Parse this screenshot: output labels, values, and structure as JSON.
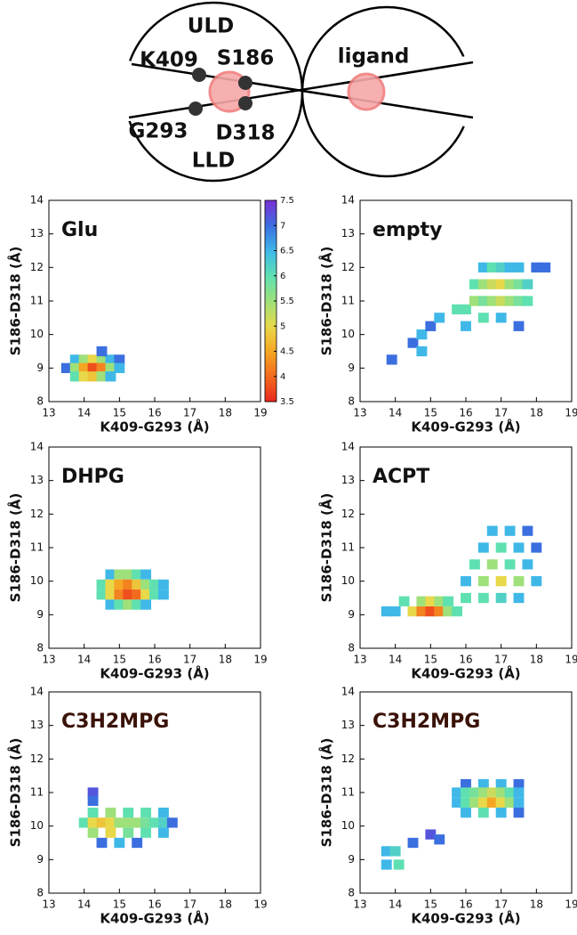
{
  "diagram": {
    "uld": "ULD",
    "lld": "LLD",
    "k409": "K409",
    "s186": "S186",
    "g293": "G293",
    "d318": "D318",
    "ligand": "ligand"
  },
  "chart_data": [
    {
      "type": "heatmap",
      "title": "Glu",
      "xlabel": "K409-G293 (Å)",
      "ylabel": "S186-D318 (Å)",
      "xlim": [
        13,
        19
      ],
      "ylim": [
        8,
        14
      ],
      "xticks": [
        13,
        14,
        15,
        16,
        17,
        18,
        19
      ],
      "yticks": [
        8,
        9,
        10,
        11,
        12,
        13,
        14
      ],
      "x": [
        13.75,
        14,
        14.25,
        14.5,
        14.75,
        15,
        13.5,
        13.75,
        14,
        14.25,
        14.5,
        14.75,
        15,
        13.75,
        14,
        14.25,
        14.5,
        14.75,
        14.5
      ],
      "y": [
        9.25,
        9.25,
        9.25,
        9.25,
        9.25,
        9.25,
        9,
        9,
        9,
        9,
        9,
        9,
        9,
        8.75,
        8.75,
        8.75,
        8.75,
        8.75,
        9.5
      ],
      "values": [
        6.5,
        5.5,
        5,
        5.5,
        6.5,
        7,
        7,
        5.5,
        4.5,
        3.8,
        4.2,
        5.5,
        6.5,
        6,
        5,
        4.8,
        5.5,
        6.5,
        7
      ],
      "colorbar": {
        "zlim": [
          3.5,
          7.5
        ],
        "zticks": [
          3.5,
          4,
          4.5,
          5,
          5.5,
          6,
          6.5,
          7,
          7.5
        ],
        "colors": [
          "#e8261c",
          "#f26a1e",
          "#f5a623",
          "#e8d84a",
          "#9ee07a",
          "#5fe0b0",
          "#3fb8e8",
          "#3b6fe0",
          "#7a2fd6"
        ]
      }
    },
    {
      "type": "heatmap",
      "title": "empty",
      "xlabel": "K409-G293 (Å)",
      "ylabel": "S186-D318 (Å)",
      "xlim": [
        13,
        19
      ],
      "ylim": [
        8,
        14
      ],
      "xticks": [
        13,
        14,
        15,
        16,
        17,
        18,
        19
      ],
      "yticks": [
        8,
        9,
        10,
        11,
        12,
        13,
        14
      ],
      "x": [
        13.9,
        14.5,
        14.75,
        14.75,
        15,
        15.25,
        15.75,
        16,
        16.25,
        16.5,
        16.75,
        17,
        17.25,
        17.5,
        17.75,
        16.25,
        16.5,
        16.75,
        17,
        17.25,
        17.5,
        17.75,
        16.5,
        16.75,
        17,
        17.25,
        17.5,
        18,
        16,
        16.5,
        17,
        17.5,
        18.25
      ],
      "y": [
        9.25,
        9.75,
        10,
        9.5,
        10.25,
        10.5,
        10.75,
        10.75,
        11,
        11,
        11,
        11,
        11,
        11,
        11,
        11.5,
        11.5,
        11.5,
        11.5,
        11.5,
        11.5,
        11.5,
        12,
        12,
        12,
        12,
        12,
        12,
        10.25,
        10.5,
        10.5,
        10.25,
        12
      ],
      "values": [
        7,
        7,
        6.5,
        6.5,
        7,
        6.5,
        6,
        6,
        5.5,
        5.8,
        5.5,
        5.2,
        5.5,
        5.8,
        6,
        6,
        5.5,
        5.2,
        5,
        5.5,
        5.8,
        6.2,
        6.5,
        6,
        6.2,
        6.5,
        6.5,
        7,
        6.5,
        6,
        6.5,
        7,
        7
      ]
    },
    {
      "type": "heatmap",
      "title": "DHPG",
      "xlabel": "K409-G293 (Å)",
      "ylabel": "S186-D318 (Å)",
      "xlim": [
        13,
        19
      ],
      "ylim": [
        8,
        14
      ],
      "xticks": [
        13,
        14,
        15,
        16,
        17,
        18,
        19
      ],
      "yticks": [
        8,
        9,
        10,
        11,
        12,
        13,
        14
      ],
      "x": [
        14.75,
        15,
        15.25,
        15.5,
        15.75,
        14.5,
        14.75,
        15,
        15.25,
        15.5,
        15.75,
        16,
        16.25,
        14.5,
        14.75,
        15,
        15.25,
        15.5,
        15.75,
        16,
        16.25,
        14.75,
        15,
        15.25,
        15.5,
        15.75
      ],
      "y": [
        10.2,
        10.2,
        10.2,
        10.2,
        10.2,
        9.9,
        9.9,
        9.9,
        9.9,
        9.9,
        9.9,
        9.9,
        9.9,
        9.6,
        9.6,
        9.6,
        9.6,
        9.6,
        9.6,
        9.6,
        9.6,
        9.3,
        9.3,
        9.3,
        9.3,
        9.3
      ],
      "values": [
        6.5,
        5.5,
        5.5,
        6,
        6.5,
        6,
        5,
        4.5,
        4.2,
        4.8,
        5.5,
        6,
        6.5,
        6,
        5,
        4.2,
        3.8,
        4,
        5,
        6,
        6.5,
        6.5,
        6,
        5.5,
        6,
        6.5
      ]
    },
    {
      "type": "heatmap",
      "title": "ACPT",
      "xlabel": "K409-G293 (Å)",
      "ylabel": "S186-D318 (Å)",
      "xlim": [
        13,
        19
      ],
      "ylim": [
        8,
        14
      ],
      "xticks": [
        13,
        14,
        15,
        16,
        17,
        18,
        19
      ],
      "yticks": [
        8,
        9,
        10,
        11,
        12,
        13,
        14
      ],
      "x": [
        14,
        14.5,
        14.75,
        15,
        15.25,
        15.5,
        14.25,
        14.75,
        15,
        15.25,
        15.5,
        16,
        16.5,
        17,
        17.5,
        16,
        16.5,
        17,
        17.5,
        18,
        16.25,
        16.75,
        17.25,
        17.75,
        16.5,
        17,
        17.5,
        18,
        16.75,
        17.25,
        17.75,
        13.75,
        15.75
      ],
      "y": [
        9.1,
        9.1,
        9.1,
        9.1,
        9.1,
        9.1,
        9.4,
        9.4,
        9.4,
        9.4,
        9.4,
        9.5,
        9.5,
        9.5,
        9.5,
        10,
        10,
        10,
        10,
        10,
        10.5,
        10.5,
        10.5,
        10.5,
        11,
        11,
        11,
        11,
        11.5,
        11.5,
        11.5,
        9.1,
        9.1
      ],
      "values": [
        6.5,
        5,
        4.2,
        3.8,
        4.2,
        5.5,
        6,
        5.5,
        5,
        5.5,
        6,
        6,
        6,
        6.2,
        6.5,
        6.5,
        5.5,
        5,
        5.5,
        6.5,
        6,
        5.5,
        6,
        6.5,
        6.5,
        6,
        6.5,
        7,
        6.5,
        6.5,
        7,
        6.5,
        6
      ]
    },
    {
      "type": "heatmap",
      "title": "C3H2MPG",
      "title_color": "#3a1208",
      "xlabel": "K409-G293 (Å)",
      "ylabel": "S186-D318 (Å)",
      "xlim": [
        13,
        19
      ],
      "ylim": [
        8,
        14
      ],
      "xticks": [
        13,
        14,
        15,
        16,
        17,
        18,
        19
      ],
      "yticks": [
        8,
        9,
        10,
        11,
        12,
        13,
        14
      ],
      "x": [
        14.25,
        14.75,
        15.25,
        15.75,
        16.25,
        14,
        14.25,
        14.5,
        14.75,
        15,
        15.25,
        15.5,
        15.75,
        16,
        16.25,
        16.5,
        14.25,
        14.75,
        15.25,
        15.75,
        16.25,
        14.5,
        15,
        15.5,
        14.25,
        14.25
      ],
      "y": [
        10.4,
        10.4,
        10.4,
        10.4,
        10.4,
        10.1,
        10.1,
        10.1,
        10.1,
        10.1,
        10.1,
        10.1,
        10.1,
        10.1,
        10.1,
        10.1,
        9.8,
        9.8,
        9.8,
        9.8,
        9.8,
        9.5,
        9.5,
        9.5,
        11,
        10.75
      ],
      "values": [
        6,
        5.5,
        6,
        6,
        6.5,
        6,
        5,
        4.8,
        5,
        5.5,
        5.5,
        5.5,
        5.8,
        6,
        6.2,
        7,
        5.5,
        5,
        5.8,
        6,
        6.5,
        7,
        6.5,
        7,
        7.2,
        7
      ]
    },
    {
      "type": "heatmap",
      "title": "C3H2MPG",
      "title_color": "#3a1208",
      "xlabel": "K409-G293 (Å)",
      "ylabel": "S186-D318 (Å)",
      "xlim": [
        13,
        19
      ],
      "ylim": [
        8,
        14
      ],
      "xticks": [
        13,
        14,
        15,
        16,
        17,
        18,
        19
      ],
      "yticks": [
        8,
        9,
        10,
        11,
        12,
        13,
        14
      ],
      "x": [
        16,
        16.5,
        17,
        17.5,
        15.75,
        16,
        16.25,
        16.5,
        16.75,
        17,
        17.25,
        17.5,
        15.75,
        16,
        16.25,
        16.5,
        16.75,
        17,
        17.25,
        17.5,
        16,
        16.5,
        17,
        17.5,
        13.75,
        14,
        13.75,
        14.1,
        14.5,
        15,
        15.25
      ],
      "y": [
        11.25,
        11.25,
        11.25,
        11.25,
        11,
        11,
        11,
        11,
        11,
        11,
        11,
        11,
        10.7,
        10.7,
        10.7,
        10.7,
        10.7,
        10.7,
        10.7,
        10.7,
        10.4,
        10.4,
        10.4,
        10.4,
        9.25,
        9.25,
        8.85,
        8.85,
        9.5,
        9.75,
        9.6
      ],
      "values": [
        7,
        6.5,
        6.5,
        7,
        6.5,
        6,
        5.8,
        5.5,
        5.2,
        5.5,
        6,
        6.5,
        6.5,
        6,
        5.5,
        5,
        4.5,
        5,
        5.5,
        6.5,
        6.5,
        6,
        6.5,
        7,
        6.5,
        6.2,
        6.5,
        6,
        7,
        7.2,
        7
      ]
    }
  ]
}
